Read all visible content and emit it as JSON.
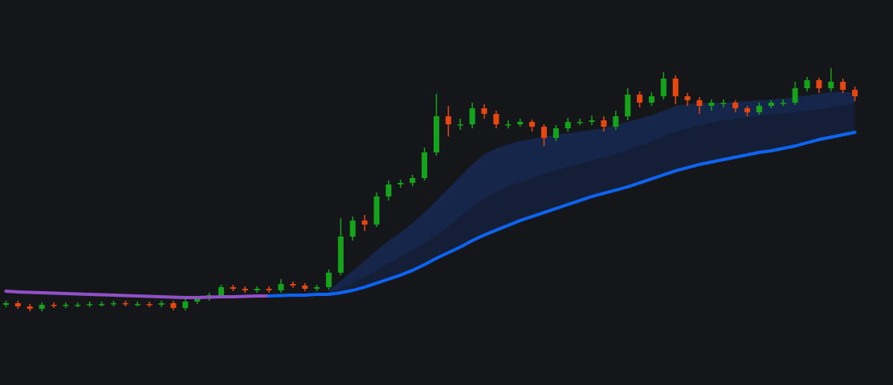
{
  "chart_data": {
    "type": "candlestick",
    "up_color": "#14a31a",
    "down_color": "#e4470f",
    "background": "#151619",
    "ylim": [
      -80,
      400
    ],
    "open": [
      20,
      22,
      18,
      15,
      20,
      19,
      20,
      20,
      21,
      21,
      22,
      21,
      21,
      20,
      22,
      16,
      24,
      28,
      32,
      42,
      40,
      38,
      40,
      38,
      46,
      44,
      40,
      42,
      60,
      105,
      125,
      120,
      155,
      170,
      172,
      178,
      210,
      255,
      245,
      245,
      265,
      258,
      245,
      245,
      248,
      242,
      228,
      240,
      248,
      248,
      250,
      242,
      255,
      282,
      272,
      280,
      302,
      280,
      275,
      268,
      272,
      272,
      265,
      260,
      268,
      272,
      272,
      290,
      300,
      290,
      298,
      288
    ],
    "high": [
      25,
      25,
      21,
      23,
      23,
      23,
      23,
      24,
      24,
      25,
      25,
      24,
      24,
      25,
      25,
      27,
      31,
      35,
      45,
      45,
      43,
      43,
      43,
      52,
      49,
      47,
      45,
      64,
      128,
      130,
      132,
      160,
      175,
      176,
      182,
      216,
      283,
      268,
      252,
      272,
      270,
      262,
      250,
      252,
      251,
      245,
      244,
      253,
      252,
      256,
      255,
      262,
      290,
      286,
      285,
      310,
      306,
      284,
      279,
      276,
      276,
      275,
      268,
      272,
      275,
      276,
      298,
      304,
      303,
      315,
      302,
      292
    ],
    "low": [
      17,
      15,
      12,
      12,
      16,
      16,
      17,
      17,
      18,
      18,
      18,
      18,
      17,
      17,
      13,
      13,
      21,
      25,
      29,
      37,
      35,
      35,
      35,
      35,
      41,
      37,
      37,
      39,
      57,
      100,
      112,
      117,
      150,
      166,
      168,
      175,
      206,
      230,
      238,
      240,
      252,
      240,
      240,
      242,
      236,
      218,
      224,
      236,
      244,
      244,
      236,
      238,
      250,
      266,
      268,
      276,
      270,
      268,
      258,
      262,
      266,
      260,
      255,
      257,
      265,
      268,
      269,
      286,
      284,
      286,
      284,
      274
    ],
    "close": [
      22,
      18,
      15,
      20,
      19,
      20,
      20,
      21,
      21,
      22,
      21,
      21,
      20,
      22,
      16,
      24,
      28,
      32,
      42,
      40,
      38,
      40,
      38,
      46,
      44,
      40,
      42,
      60,
      105,
      125,
      120,
      155,
      170,
      172,
      178,
      210,
      255,
      245,
      245,
      265,
      258,
      245,
      245,
      248,
      242,
      228,
      240,
      248,
      248,
      250,
      242,
      255,
      282,
      272,
      280,
      302,
      280,
      275,
      268,
      272,
      272,
      265,
      260,
      268,
      272,
      272,
      290,
      300,
      290,
      298,
      288,
      280
    ],
    "bands": [
      {
        "color": "#16264a",
        "values": [
          null,
          null,
          null,
          null,
          null,
          null,
          null,
          null,
          null,
          null,
          null,
          null,
          null,
          null,
          null,
          null,
          null,
          null,
          null,
          null,
          null,
          null,
          null,
          null,
          null,
          null,
          null,
          38,
          50,
          62,
          75,
          88,
          100,
          110,
          122,
          135,
          150,
          165,
          180,
          195,
          208,
          215,
          220,
          224,
          227,
          230,
          232,
          234,
          236,
          238,
          240,
          244,
          248,
          252,
          256,
          262,
          268,
          270,
          271,
          272,
          272,
          273,
          274,
          275,
          276,
          277,
          279,
          281,
          283,
          285,
          285,
          285
        ]
      },
      {
        "color": "#141e36",
        "values": [
          null,
          null,
          null,
          null,
          null,
          null,
          null,
          null,
          null,
          null,
          null,
          null,
          null,
          null,
          null,
          null,
          null,
          null,
          null,
          null,
          null,
          null,
          null,
          null,
          null,
          null,
          null,
          35,
          40,
          47,
          55,
          63,
          72,
          80,
          88,
          97,
          107,
          118,
          130,
          143,
          153,
          160,
          167,
          173,
          178,
          183,
          188,
          192,
          196,
          200,
          204,
          208,
          213,
          218,
          224,
          230,
          236,
          240,
          244,
          247,
          250,
          252,
          254,
          256,
          257,
          258,
          260,
          262,
          264,
          266,
          268,
          272
        ]
      }
    ],
    "lines": [
      {
        "color": "#9050c8",
        "values": [
          37,
          36,
          35.5,
          35,
          34.5,
          34,
          33.5,
          33,
          32.5,
          32,
          31.5,
          31,
          30.5,
          30,
          29.5,
          29,
          29,
          29.5,
          30,
          30,
          30.5,
          31,
          31,
          null,
          null,
          null,
          null,
          null,
          null,
          null,
          null,
          null,
          null,
          null,
          null,
          null,
          null,
          null,
          null,
          null,
          null,
          null,
          null,
          null,
          null,
          null,
          null,
          null,
          null,
          null,
          null,
          null,
          null,
          null,
          null,
          null,
          null,
          null,
          null,
          null,
          null,
          null,
          null,
          null,
          null,
          null,
          null,
          null,
          null,
          null,
          null,
          null
        ]
      },
      {
        "color": "#0d63f2",
        "values": [
          null,
          null,
          null,
          null,
          null,
          null,
          null,
          null,
          null,
          null,
          null,
          null,
          null,
          null,
          null,
          null,
          null,
          null,
          null,
          null,
          null,
          null,
          31,
          31.5,
          32,
          32,
          33,
          33,
          35,
          38,
          42,
          47,
          52,
          57,
          63,
          70,
          78,
          85,
          92,
          100,
          107,
          113,
          119,
          125,
          130,
          135,
          140,
          145,
          150,
          155,
          159,
          163,
          167,
          172,
          177,
          182,
          187,
          191,
          195,
          198,
          201,
          204,
          207,
          210,
          212,
          215,
          218,
          222,
          226,
          229,
          232,
          235
        ]
      }
    ]
  }
}
